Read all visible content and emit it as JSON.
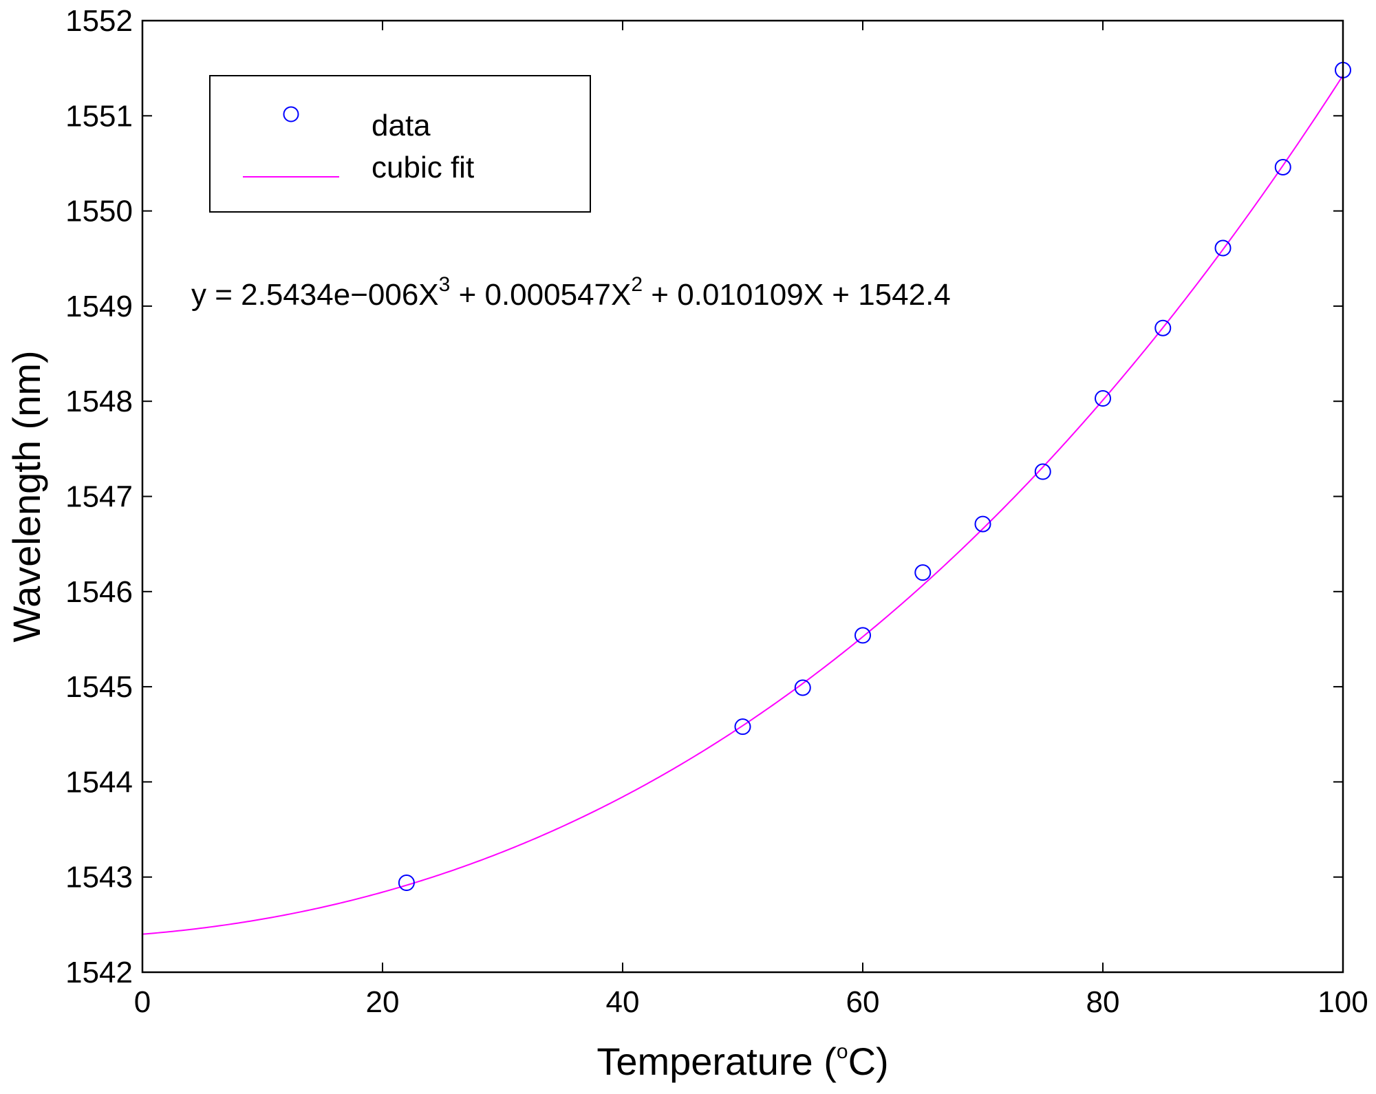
{
  "chart_data": {
    "type": "scatter",
    "xlabel_main": "Temperature (",
    "xlabel_sup": "o",
    "xlabel_tail": "C)",
    "ylabel": "Wavelength (nm)",
    "xlim": [
      0,
      100
    ],
    "ylim": [
      1542,
      1552
    ],
    "xticks": [
      "0",
      "20",
      "40",
      "60",
      "80",
      "100"
    ],
    "yticks": [
      "1542",
      "1543",
      "1544",
      "1545",
      "1546",
      "1547",
      "1548",
      "1549",
      "1550",
      "1551",
      "1552"
    ],
    "grid": false,
    "legend": {
      "placement": "top-left",
      "entries": [
        "data",
        "cubic fit"
      ]
    },
    "series": [
      {
        "name": "data",
        "style": "markers",
        "marker": "circle-open",
        "color": "#0000ff",
        "x": [
          22,
          50,
          55,
          60,
          65,
          70,
          75,
          80,
          85,
          90,
          95,
          100
        ],
        "y": [
          1542.94,
          1544.58,
          1544.99,
          1545.54,
          1546.2,
          1546.71,
          1547.26,
          1548.03,
          1548.77,
          1549.61,
          1550.46,
          1551.48
        ]
      },
      {
        "name": "cubic fit",
        "style": "line",
        "color": "#ff00ff",
        "coefficients": [
          2.5434e-06,
          0.000547,
          0.010109,
          1542.4
        ],
        "x_range": [
          0,
          100
        ]
      }
    ],
    "annotation": {
      "p1": "y = 2.5434e−006X",
      "s1": "3",
      "p2": " + 0.000547X",
      "s2": "2",
      "p3": " + 0.010109X + 1542.4"
    }
  }
}
